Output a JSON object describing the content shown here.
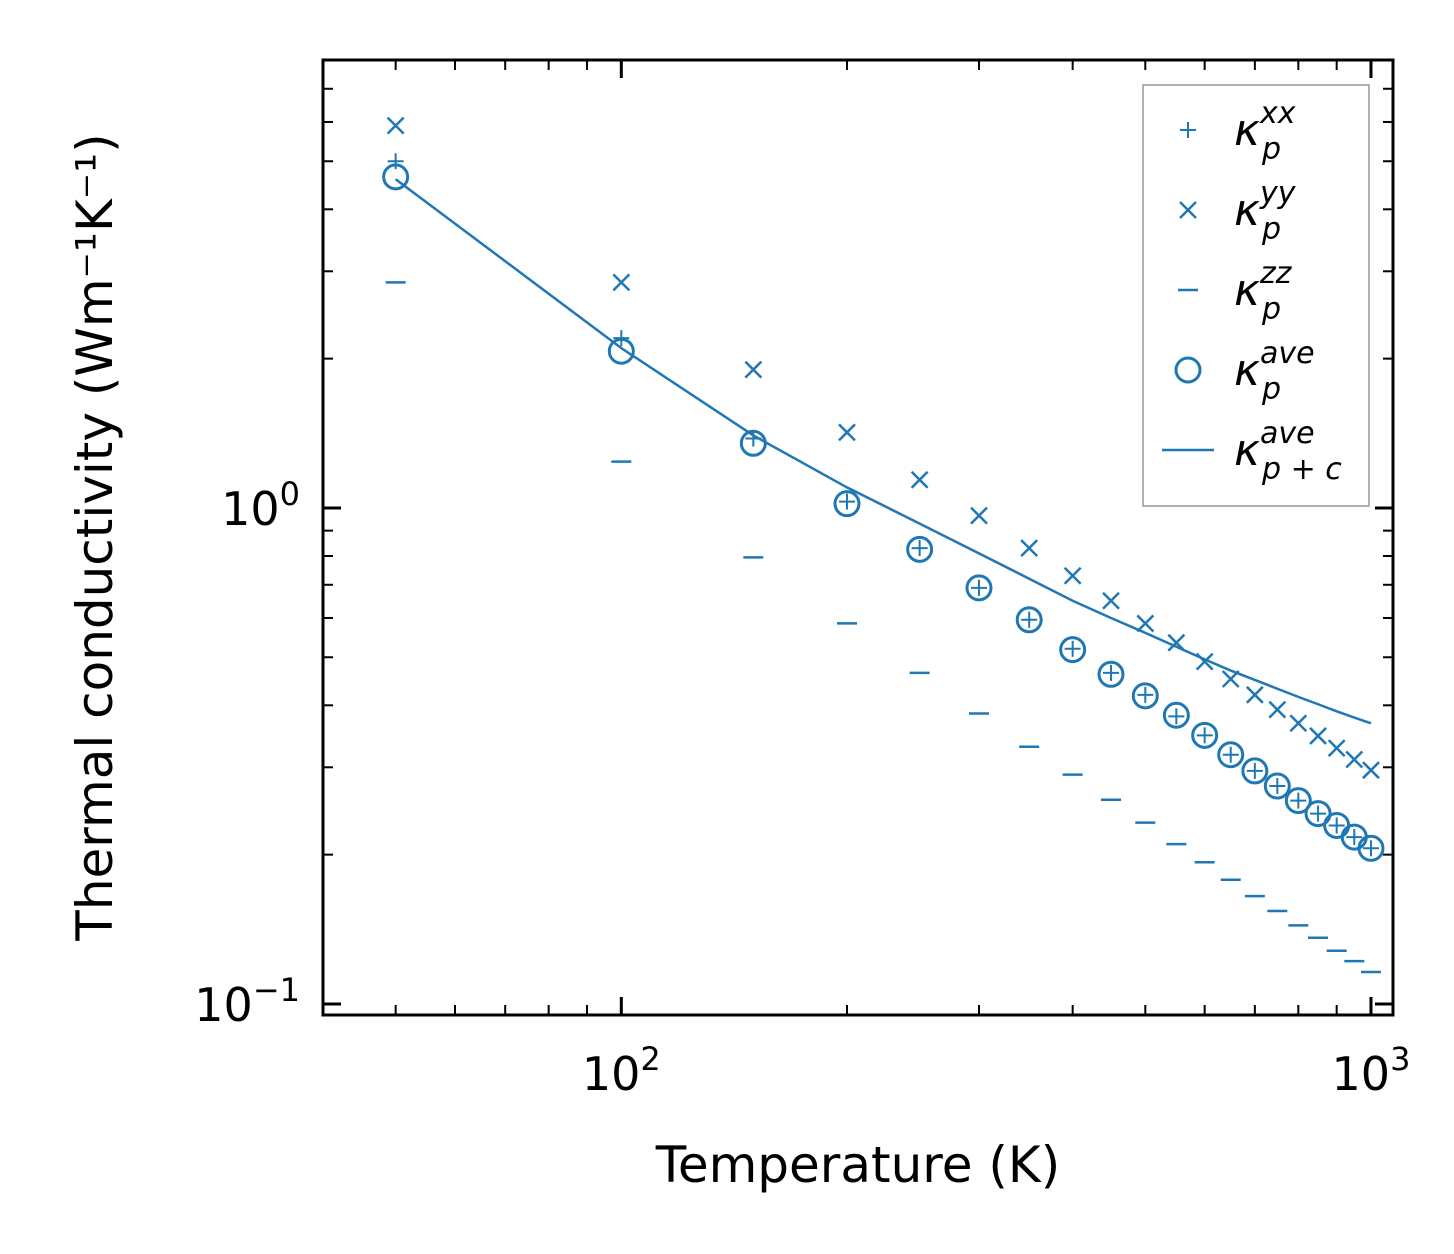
{
  "chart_data": {
    "type": "scatter",
    "title": "",
    "xlabel": "Temperature (K)",
    "ylabel": "Thermal conductivity (Wm⁻¹K⁻¹)",
    "xscale": "log",
    "yscale": "log",
    "xlim": [
      40,
      1070
    ],
    "ylim": [
      0.095,
      8.0
    ],
    "xtick_labels": [
      {
        "value": 100,
        "base": "10",
        "exp": "2"
      },
      {
        "value": 1000,
        "base": "10",
        "exp": "3"
      }
    ],
    "ytick_labels": [
      {
        "value": 0.1,
        "base": "10",
        "exp": "−1"
      },
      {
        "value": 1,
        "base": "10",
        "exp": "0"
      }
    ],
    "grid": false,
    "legend_position": "top-right",
    "color": "#1f77b4",
    "x": [
      50,
      100,
      150,
      200,
      250,
      300,
      350,
      400,
      450,
      500,
      550,
      600,
      650,
      700,
      750,
      800,
      850,
      900,
      950,
      1000
    ],
    "series": [
      {
        "name": "kxx",
        "label_base": "κ",
        "label_sup": "xx",
        "label_sub": "p",
        "marker": "plus",
        "values": [
          5.0,
          2.2,
          1.38,
          1.03,
          0.83,
          0.69,
          0.595,
          0.52,
          0.465,
          0.42,
          0.38,
          0.348,
          0.318,
          0.295,
          0.275,
          0.257,
          0.242,
          0.229,
          0.217,
          0.206
        ]
      },
      {
        "name": "kyy",
        "label_base": "κ",
        "label_sup": "yy",
        "label_sub": "p",
        "marker": "x",
        "values": [
          5.9,
          2.85,
          1.9,
          1.42,
          1.14,
          0.965,
          0.83,
          0.73,
          0.65,
          0.585,
          0.535,
          0.49,
          0.452,
          0.42,
          0.392,
          0.368,
          0.347,
          0.328,
          0.311,
          0.296
        ]
      },
      {
        "name": "kzz",
        "label_base": "κ",
        "label_sup": "zz",
        "label_sub": "p",
        "marker": "hline",
        "values": [
          2.85,
          1.24,
          0.795,
          0.585,
          0.465,
          0.385,
          0.33,
          0.29,
          0.258,
          0.232,
          0.21,
          0.193,
          0.178,
          0.165,
          0.154,
          0.144,
          0.136,
          0.128,
          0.122,
          0.116
        ]
      },
      {
        "name": "kave",
        "label_base": "κ",
        "label_sup": "ave",
        "label_sub": "p",
        "marker": "circle",
        "values": [
          4.65,
          2.07,
          1.35,
          1.02,
          0.825,
          0.69,
          0.595,
          0.518,
          0.462,
          0.418,
          0.382,
          0.348,
          0.318,
          0.295,
          0.275,
          0.257,
          0.242,
          0.229,
          0.217,
          0.206
        ]
      },
      {
        "name": "kave_pc",
        "label_base": "κ",
        "label_sup": "ave",
        "label_sub": "p + c",
        "marker": "line",
        "values": [
          4.6,
          2.1,
          1.4,
          1.1,
          0.93,
          0.81,
          0.72,
          0.65,
          0.6,
          0.56,
          0.525,
          0.495,
          0.47,
          0.45,
          0.432,
          0.416,
          0.402,
          0.389,
          0.378,
          0.368
        ]
      }
    ]
  }
}
